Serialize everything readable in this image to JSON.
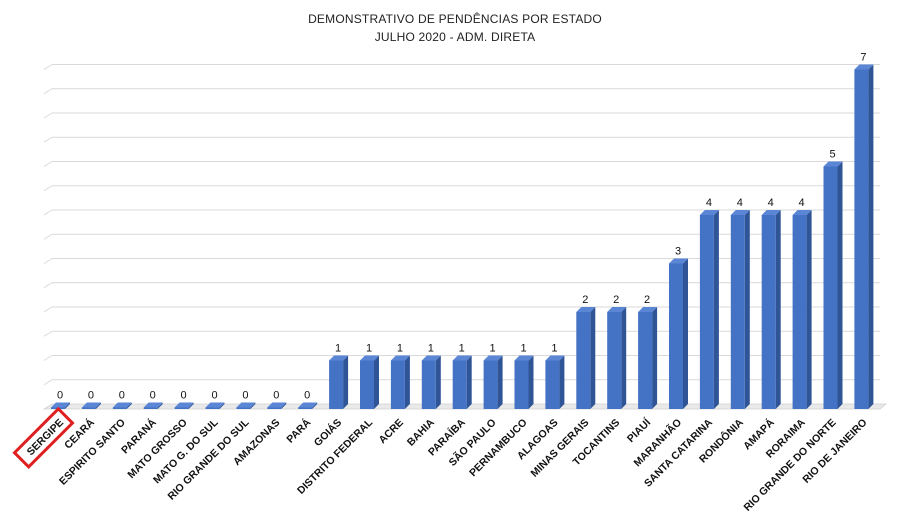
{
  "chart_data": {
    "type": "bar",
    "title": "DEMONSTRATIVO DE PENDÊNCIAS POR ESTADO",
    "subtitle": "JULHO 2020 - ADM. DIRETA",
    "categories": [
      "SERGIPE",
      "CEARÁ",
      "ESPIRITO SANTO",
      "PARANÁ",
      "MATO GROSSO",
      "MATO G. DO SUL",
      "RIO GRANDE DO SUL",
      "AMAZONAS",
      "PARÁ",
      "GOIÁS",
      "DISTRITO FEDERAL",
      "ACRE",
      "BAHIA",
      "PARAÍBA",
      "SÃO PAULO",
      "PERNAMBUCO",
      "ALAGOAS",
      "MINAS GERAIS",
      "TOCANTINS",
      "PIAUÍ",
      "MARANHÃO",
      "SANTA CATARINA",
      "RONDÔNIA",
      "AMAPÁ",
      "RORAIMA",
      "RIO GRANDE DO NORTE",
      "RIO DE JANEIRO"
    ],
    "values": [
      0,
      0,
      0,
      0,
      0,
      0,
      0,
      0,
      0,
      1,
      1,
      1,
      1,
      1,
      1,
      1,
      1,
      2,
      2,
      2,
      3,
      4,
      4,
      4,
      4,
      5,
      7
    ],
    "ylim": [
      0,
      7
    ],
    "grid": true,
    "bar_color": "#4472C4",
    "highlight": "SERGIPE",
    "highlight_color": "#E02020"
  }
}
